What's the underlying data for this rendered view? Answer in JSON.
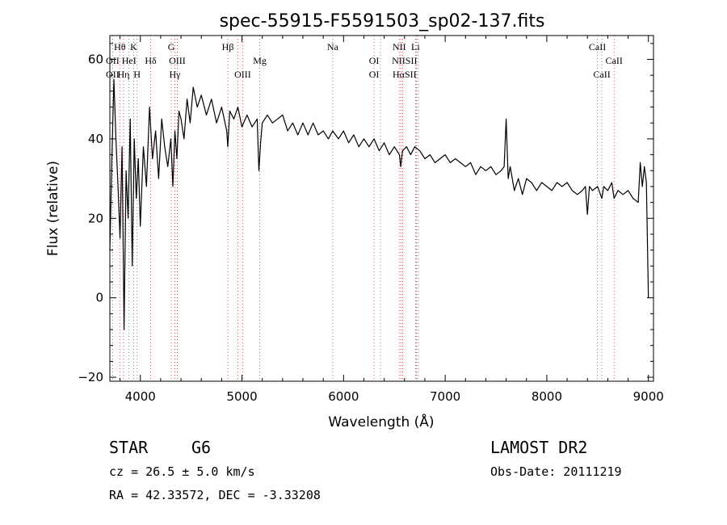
{
  "chart_data": {
    "type": "line",
    "title": "spec-55915-F5591503_sp02-137.fits",
    "xlabel": "Wavelength (Å)",
    "ylabel": "Flux (relative)",
    "xlim": [
      3700,
      9050
    ],
    "ylim": [
      -21,
      66
    ],
    "xticks": [
      4000,
      5000,
      6000,
      7000,
      8000,
      9000
    ],
    "yticks": [
      -20,
      0,
      20,
      40,
      60
    ],
    "grid": false,
    "series": [
      {
        "x": [
          3700,
          3720,
          3740,
          3760,
          3780,
          3800,
          3820,
          3840,
          3860,
          3880,
          3900,
          3920,
          3940,
          3960,
          3980,
          4000,
          4030,
          4060,
          4090,
          4120,
          4150,
          4180,
          4210,
          4240,
          4270,
          4300,
          4320,
          4340,
          4360,
          4380,
          4400,
          4430,
          4460,
          4490,
          4520,
          4560,
          4600,
          4650,
          4700,
          4750,
          4800,
          4850,
          4861,
          4880,
          4920,
          4960,
          5000,
          5050,
          5100,
          5150,
          5167,
          5183,
          5200,
          5250,
          5300,
          5350,
          5400,
          5450,
          5500,
          5550,
          5600,
          5650,
          5700,
          5750,
          5800,
          5850,
          5893,
          5950,
          6000,
          6050,
          6100,
          6150,
          6200,
          6250,
          6300,
          6350,
          6400,
          6450,
          6500,
          6550,
          6563,
          6580,
          6620,
          6660,
          6700,
          6750,
          6800,
          6850,
          6900,
          6950,
          7000,
          7050,
          7100,
          7150,
          7200,
          7250,
          7300,
          7350,
          7400,
          7450,
          7500,
          7550,
          7580,
          7600,
          7620,
          7640,
          7680,
          7720,
          7760,
          7800,
          7850,
          7900,
          7950,
          8000,
          8050,
          8100,
          8150,
          8200,
          8250,
          8300,
          8350,
          8380,
          8400,
          8420,
          8450,
          8500,
          8542,
          8560,
          8600,
          8640,
          8662,
          8700,
          8750,
          8800,
          8850,
          8900,
          8920,
          8940,
          8960,
          8980,
          9000
        ],
        "y": [
          12,
          35,
          55,
          40,
          28,
          15,
          38,
          -8,
          32,
          20,
          45,
          8,
          40,
          25,
          35,
          18,
          38,
          28,
          48,
          35,
          42,
          30,
          45,
          38,
          33,
          40,
          28,
          42,
          35,
          47,
          45,
          40,
          50,
          44,
          53,
          48,
          51,
          46,
          50,
          44,
          48,
          42,
          38,
          47,
          45,
          48,
          43,
          46,
          43,
          45,
          32,
          39,
          44,
          46,
          44,
          45,
          46,
          42,
          44,
          41,
          44,
          41,
          44,
          41,
          42,
          40,
          42,
          40,
          42,
          39,
          41,
          38,
          40,
          38,
          40,
          37,
          39,
          36,
          38,
          36,
          33,
          37,
          38,
          36,
          38,
          37,
          35,
          36,
          34,
          35,
          36,
          34,
          35,
          34,
          33,
          34,
          31,
          33,
          32,
          33,
          31,
          32,
          33,
          45,
          30,
          33,
          27,
          30,
          26,
          30,
          29,
          27,
          29,
          28,
          27,
          29,
          28,
          29,
          27,
          26,
          27,
          28,
          21,
          28,
          27,
          28,
          25,
          28,
          27,
          29,
          25,
          27,
          26,
          27,
          25,
          24,
          34,
          28,
          33,
          29,
          0
        ]
      }
    ],
    "line_labels": [
      {
        "text": "Hθ",
        "x": 3798,
        "row": 1
      },
      {
        "text": "K",
        "x": 3934,
        "row": 1
      },
      {
        "text": "G",
        "x": 4305,
        "row": 1
      },
      {
        "text": "Hβ",
        "x": 4861,
        "row": 1
      },
      {
        "text": "Na",
        "x": 5893,
        "row": 1
      },
      {
        "text": "NII",
        "x": 6548,
        "row": 1
      },
      {
        "text": "Li",
        "x": 6708,
        "row": 1
      },
      {
        "text": "CaII",
        "x": 8498,
        "row": 1
      },
      {
        "text": "OII",
        "x": 3727,
        "row": 2
      },
      {
        "text": "HeI",
        "x": 3889,
        "row": 2
      },
      {
        "text": "Hδ",
        "x": 4102,
        "row": 2
      },
      {
        "text": "OIII",
        "x": 4363,
        "row": 2
      },
      {
        "text": "Mg",
        "x": 5175,
        "row": 2
      },
      {
        "text": "OI",
        "x": 6300,
        "row": 2
      },
      {
        "text": "NIISII",
        "x": 6600,
        "row": 2
      },
      {
        "text": "CaII",
        "x": 8662,
        "row": 2
      },
      {
        "text": "OII",
        "x": 3727,
        "row": 3
      },
      {
        "text": "Hη",
        "x": 3835,
        "row": 3
      },
      {
        "text": "H",
        "x": 3968,
        "row": 3
      },
      {
        "text": "Hγ",
        "x": 4340,
        "row": 3
      },
      {
        "text": "OIII",
        "x": 5007,
        "row": 3
      },
      {
        "text": "OI",
        "x": 6300,
        "row": 3
      },
      {
        "text": "HαSII",
        "x": 6600,
        "row": 3
      },
      {
        "text": "CaII",
        "x": 8542,
        "row": 3
      }
    ],
    "line_markers": [
      3727,
      3798,
      3835,
      3889,
      3934,
      3968,
      4102,
      4305,
      4340,
      4363,
      4861,
      4959,
      5007,
      5175,
      5893,
      6300,
      6363,
      6548,
      6563,
      6583,
      6708,
      6716,
      6731,
      8498,
      8542,
      8662
    ]
  },
  "info": {
    "object_class": "STAR",
    "subclass": "G6",
    "cz": "cz = 26.5 ± 5.0 km/s",
    "coords": "RA =  42.33572, DEC =  -3.33208",
    "survey": "LAMOST DR2",
    "obs_date": "Obs-Date: 20111219"
  }
}
